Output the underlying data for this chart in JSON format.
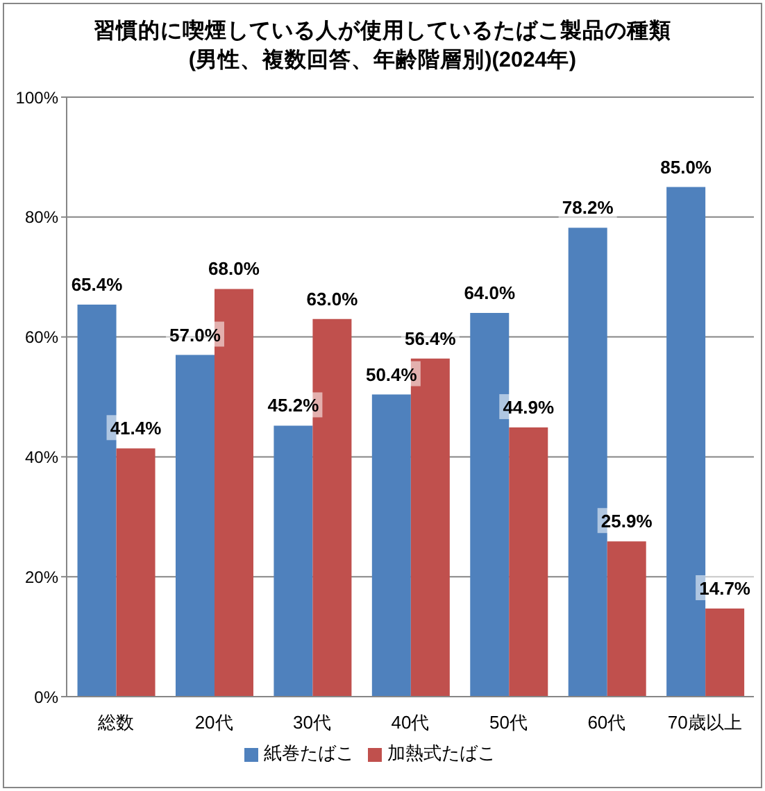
{
  "chart_data": {
    "type": "bar",
    "title": "習慣的に喫煙している人が使用しているたばこ製品の種類\n(男性、複数回答、年齢階層別)(2024年)",
    "categories": [
      "総数",
      "20代",
      "30代",
      "40代",
      "50代",
      "60代",
      "70歳以上"
    ],
    "series": [
      {
        "name": "紙巻たばこ",
        "color": "#4f81bd",
        "values": [
          65.4,
          57.0,
          45.2,
          50.4,
          64.0,
          78.2,
          85.0
        ],
        "value_labels": [
          "65.4%",
          "57.0%",
          "45.2%",
          "50.4%",
          "64.0%",
          "78.2%",
          "85.0%"
        ]
      },
      {
        "name": "加熱式たばこ",
        "color": "#c0504d",
        "values": [
          41.4,
          68.0,
          63.0,
          56.4,
          44.9,
          25.9,
          14.7
        ],
        "value_labels": [
          "41.4%",
          "68.0%",
          "63.0%",
          "56.4%",
          "44.9%",
          "25.9%",
          "14.7%"
        ]
      }
    ],
    "ylim": [
      0,
      100
    ],
    "yticks": [
      {
        "value": 0,
        "label": "0%"
      },
      {
        "value": 20,
        "label": "20%"
      },
      {
        "value": 40,
        "label": "40%"
      },
      {
        "value": 60,
        "label": "60%"
      },
      {
        "value": 80,
        "label": "80%"
      },
      {
        "value": 100,
        "label": "100%"
      }
    ],
    "grid": "y",
    "legend": "bottom"
  }
}
